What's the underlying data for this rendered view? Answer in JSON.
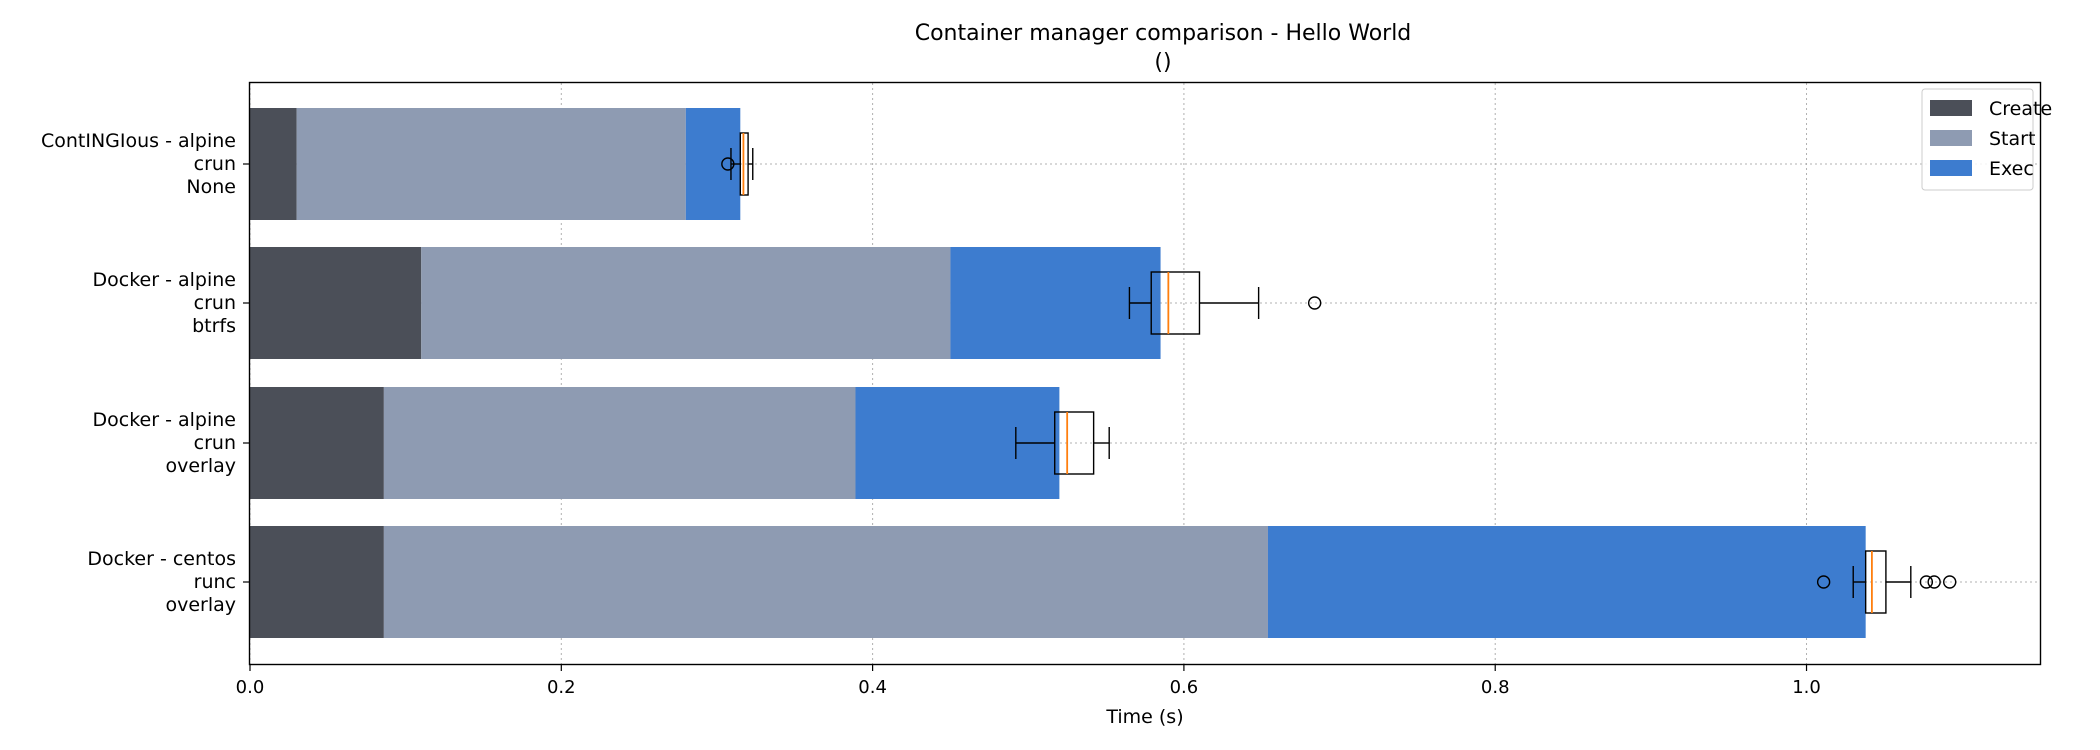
{
  "chart_data": {
    "type": "bar",
    "orientation": "horizontal",
    "stacked": true,
    "title": "Container manager comparison - Hello World",
    "subtitle": "()",
    "xlabel": "Time (s)",
    "ylabel": "",
    "xlim": [
      0,
      1.15
    ],
    "xticks": [
      "0.0",
      "0.2",
      "0.4",
      "0.6",
      "0.8",
      "1.0"
    ],
    "grid": true,
    "legend_position": "top-right",
    "categories": [
      [
        "ContINGIous - alpine",
        "crun",
        "None"
      ],
      [
        "Docker - alpine",
        "crun",
        "btrfs"
      ],
      [
        "Docker - alpine",
        "crun",
        "overlay"
      ],
      [
        "Docker - centos",
        "runc",
        "overlay"
      ]
    ],
    "series": [
      {
        "name": "Create",
        "color": "#4b4f58",
        "values": [
          0.03,
          0.11,
          0.086,
          0.086
        ]
      },
      {
        "name": "Start",
        "color": "#8e9bb2",
        "values": [
          0.25,
          0.34,
          0.303,
          0.568
        ]
      },
      {
        "name": "Exec",
        "color": "#3d7ccf",
        "values": [
          0.035,
          0.135,
          0.131,
          0.384
        ]
      }
    ],
    "boxplots": [
      {
        "whisker_low": 0.309,
        "q1": 0.315,
        "median": 0.317,
        "q3": 0.32,
        "whisker_high": 0.323,
        "outliers": [
          0.307
        ]
      },
      {
        "whisker_low": 0.565,
        "q1": 0.579,
        "median": 0.59,
        "q3": 0.61,
        "whisker_high": 0.648,
        "outliers": [
          0.684
        ]
      },
      {
        "whisker_low": 0.492,
        "q1": 0.517,
        "median": 0.525,
        "q3": 0.542,
        "whisker_high": 0.552,
        "outliers": []
      },
      {
        "whisker_low": 1.03,
        "q1": 1.038,
        "median": 1.042,
        "q3": 1.051,
        "whisker_high": 1.067,
        "outliers": [
          1.011,
          1.077,
          1.082,
          1.092
        ]
      }
    ]
  }
}
